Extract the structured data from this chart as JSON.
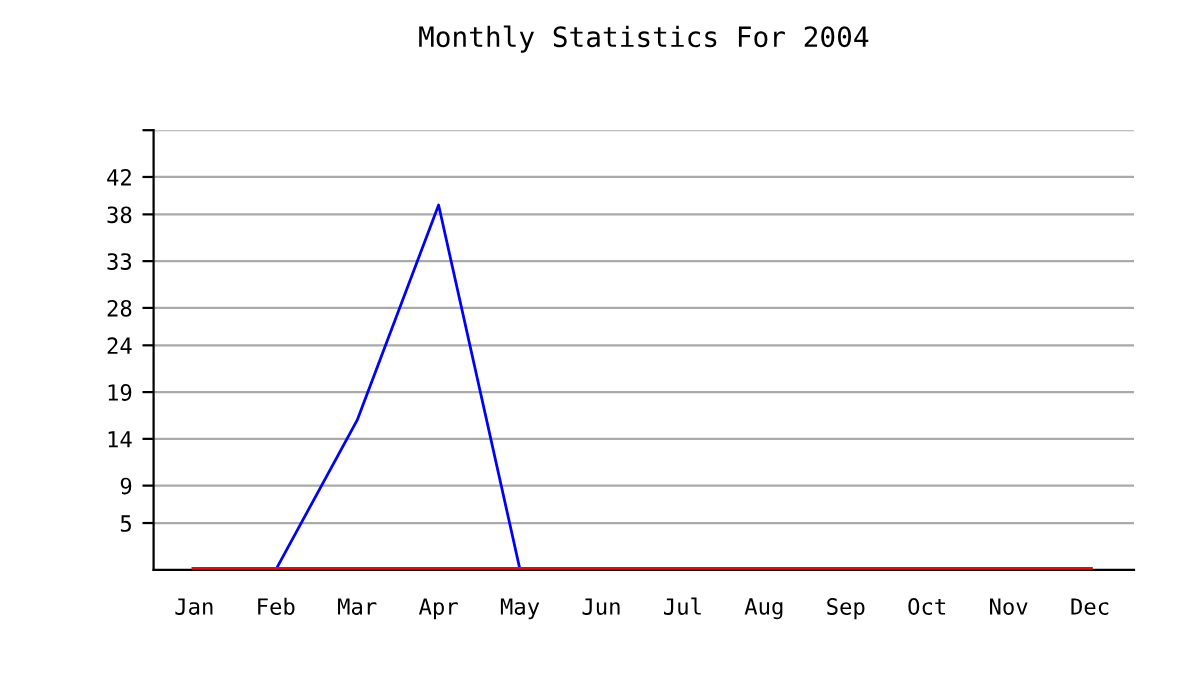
{
  "chart_data": {
    "type": "line",
    "title": "Monthly Statistics For 2004",
    "categories": [
      "Jan",
      "Feb",
      "Mar",
      "Apr",
      "May",
      "Jun",
      "Jul",
      "Aug",
      "Sep",
      "Oct",
      "Nov",
      "Dec"
    ],
    "series": [
      {
        "color": "#0000ff",
        "values": [
          null,
          0,
          16,
          39,
          0,
          null,
          null,
          null,
          null,
          null,
          null,
          null
        ]
      },
      {
        "color": "#ff0000",
        "values": [
          0,
          0,
          0,
          0,
          0,
          0,
          0,
          0,
          0,
          0,
          0,
          0
        ]
      }
    ],
    "ylim": [
      0,
      47
    ],
    "yticks": [
      5,
      9,
      14,
      19,
      24,
      28,
      33,
      38,
      42,
      {
        "value": 47,
        "label": null
      }
    ],
    "grid": "y",
    "legend": false,
    "marker": "none",
    "line_style": "solid"
  }
}
